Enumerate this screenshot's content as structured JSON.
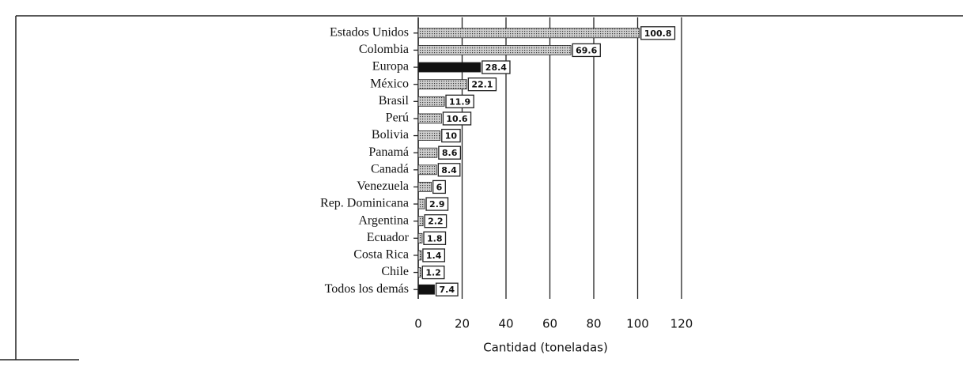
{
  "chart_data": {
    "type": "barh",
    "categories": [
      "Estados Unidos",
      "Colombia",
      "Europa",
      "México",
      "Brasil",
      "Perú",
      "Bolivia",
      "Panamá",
      "Canadá",
      "Venezuela",
      "Rep. Dominicana",
      "Argentina",
      "Ecuador",
      "Costa Rica",
      "Chile",
      "Todos los demás"
    ],
    "values": [
      100.8,
      69.6,
      28.4,
      22.1,
      11.9,
      10.6,
      10,
      8.6,
      8.4,
      6,
      2.9,
      2.2,
      1.8,
      1.4,
      1.2,
      7.4
    ],
    "colors": [
      "#cfcfcf",
      "#cfcfcf",
      "#111111",
      "#cfcfcf",
      "#cfcfcf",
      "#cfcfcf",
      "#cfcfcf",
      "#cfcfcf",
      "#cfcfcf",
      "#cfcfcf",
      "#cfcfcf",
      "#cfcfcf",
      "#cfcfcf",
      "#cfcfcf",
      "#cfcfcf",
      "#111111"
    ],
    "xlabel": "Cantidad (toneladas)",
    "xlim": [
      0,
      120
    ],
    "xticks": [
      0,
      20,
      40,
      60,
      80,
      100,
      120
    ],
    "grid": true
  }
}
